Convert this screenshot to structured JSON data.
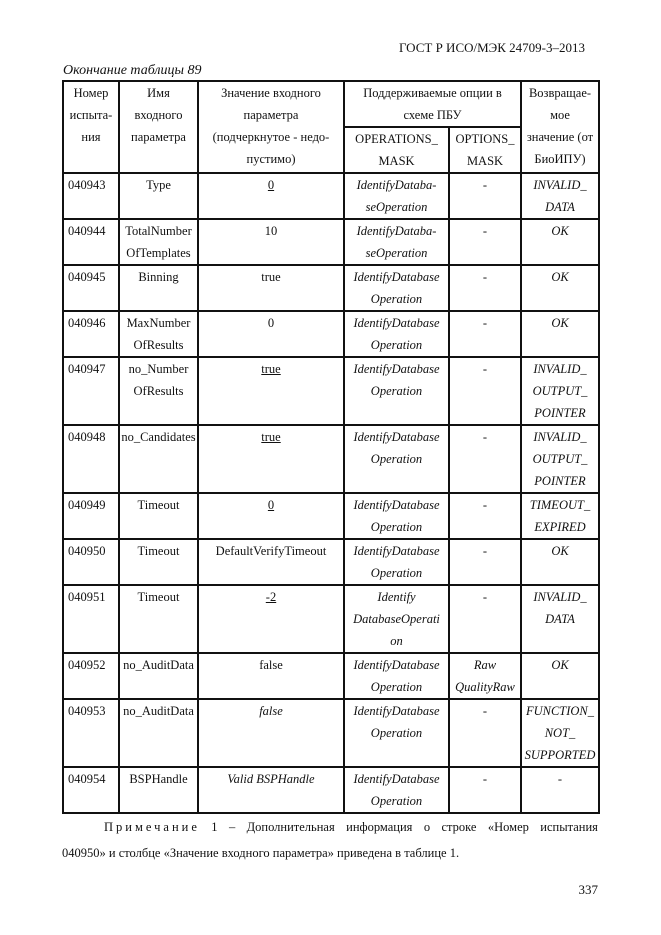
{
  "running_header": "ГОСТ Р ИСО/МЭК 24709-3–2013",
  "caption": "Окончание таблицы 89",
  "table": {
    "headers": {
      "test_no": "Номер\nиспыта-\nния",
      "param_name": "Имя\nвходного\nпараметра",
      "param_value": "Значение входного\nпараметра\n(подчеркнутое - недо-\nпустимо)",
      "options_group": "Поддерживаемые опции в\nсхеме ПБУ",
      "operations_mask": "OPERATIONS_\nMASK",
      "options_mask": "OPTIONS_\nMASK",
      "return_value": "Возвращае-\nмое\nзначение (от\nБиоИПУ)"
    },
    "rows": [
      {
        "cells": [
          {
            "t": "040943"
          },
          {
            "t": "Type"
          },
          {
            "t": "0",
            "s": "underline"
          },
          {
            "t": "IdentifyDataba-\nseOperation",
            "s": "italic"
          },
          {
            "t": "-"
          },
          {
            "t": "INVALID_\nDATA",
            "s": "italic"
          }
        ]
      },
      {
        "cells": [
          {
            "t": "040944"
          },
          {
            "t": "TotalNumber\nOfTemplates"
          },
          {
            "t": "10"
          },
          {
            "t": "IdentifyDataba-\nseOperation",
            "s": "italic"
          },
          {
            "t": "-"
          },
          {
            "t": "OK",
            "s": "italic"
          }
        ]
      },
      {
        "cells": [
          {
            "t": "040945"
          },
          {
            "t": "Binning"
          },
          {
            "t": "true"
          },
          {
            "t": "IdentifyDatabase\nOperation",
            "s": "italic"
          },
          {
            "t": "-"
          },
          {
            "t": "OK",
            "s": "italic"
          }
        ]
      },
      {
        "cells": [
          {
            "t": "040946"
          },
          {
            "t": "MaxNumber\nOfResults"
          },
          {
            "t": "0"
          },
          {
            "t": "IdentifyDatabase\nOperation",
            "s": "italic"
          },
          {
            "t": "-"
          },
          {
            "t": "OK",
            "s": "italic"
          }
        ]
      },
      {
        "cells": [
          {
            "t": "040947"
          },
          {
            "t": "no_Number\nOfResults"
          },
          {
            "t": "true",
            "s": "underline"
          },
          {
            "t": "IdentifyDatabase\nOperation",
            "s": "italic"
          },
          {
            "t": "-"
          },
          {
            "t": "INVALID_\nOUTPUT_\nPOINTER",
            "s": "italic"
          }
        ]
      },
      {
        "cells": [
          {
            "t": "040948"
          },
          {
            "t": "no_Candidates"
          },
          {
            "t": "true",
            "s": "underline"
          },
          {
            "t": "IdentifyDatabase\nOperation",
            "s": "italic"
          },
          {
            "t": "-"
          },
          {
            "t": "INVALID_\nOUTPUT_\nPOINTER",
            "s": "italic"
          }
        ]
      },
      {
        "cells": [
          {
            "t": "040949"
          },
          {
            "t": "Timeout"
          },
          {
            "t": "0",
            "s": "underline"
          },
          {
            "t": "IdentifyDatabase\nOperation",
            "s": "italic"
          },
          {
            "t": "-"
          },
          {
            "t": "TIMEOUT_\nEXPIRED",
            "s": "italic"
          }
        ]
      },
      {
        "cells": [
          {
            "t": "040950"
          },
          {
            "t": "Timeout"
          },
          {
            "t": "DefaultVerifyTimeout"
          },
          {
            "t": "IdentifyDatabase\nOperation",
            "s": "italic"
          },
          {
            "t": "-"
          },
          {
            "t": "OK",
            "s": "italic"
          }
        ]
      },
      {
        "cells": [
          {
            "t": "040951"
          },
          {
            "t": "Timeout"
          },
          {
            "t": "-2",
            "s": "underline"
          },
          {
            "t": "Identify\nDatabaseOperati\non",
            "s": "italic"
          },
          {
            "t": "-"
          },
          {
            "t": "INVALID_\nDATA",
            "s": "italic"
          }
        ]
      },
      {
        "cells": [
          {
            "t": "040952"
          },
          {
            "t": "no_AuditData"
          },
          {
            "t": "false"
          },
          {
            "t": "IdentifyDatabase\nOperation",
            "s": "italic"
          },
          {
            "t": "Raw\nQualityRaw",
            "s": "italic"
          },
          {
            "t": "OK",
            "s": "italic"
          }
        ]
      },
      {
        "cells": [
          {
            "t": "040953"
          },
          {
            "t": "no_AuditData"
          },
          {
            "t": "false",
            "s": "italic"
          },
          {
            "t": "IdentifyDatabase\nOperation",
            "s": "italic"
          },
          {
            "t": "-"
          },
          {
            "t": "FUNCTION_\nNOT_\nSUPPORTED",
            "s": "italic"
          }
        ]
      },
      {
        "cells": [
          {
            "t": "040954"
          },
          {
            "t": "BSPHandle"
          },
          {
            "t": "Valid BSPHandle",
            "s": "italic"
          },
          {
            "t": "IdentifyDatabase\nOperation",
            "s": "italic"
          },
          {
            "t": "-"
          },
          {
            "t": "-"
          }
        ]
      }
    ]
  },
  "note": {
    "label": "Примечание",
    "line1_words": [
      "1",
      "–",
      "Дополнительная",
      "информация",
      "о",
      "строке",
      "«Номер",
      "испытания"
    ],
    "line2": "040950» и столбце «Значение входного параметра» приведена в таблице 1."
  },
  "page_number": "337"
}
